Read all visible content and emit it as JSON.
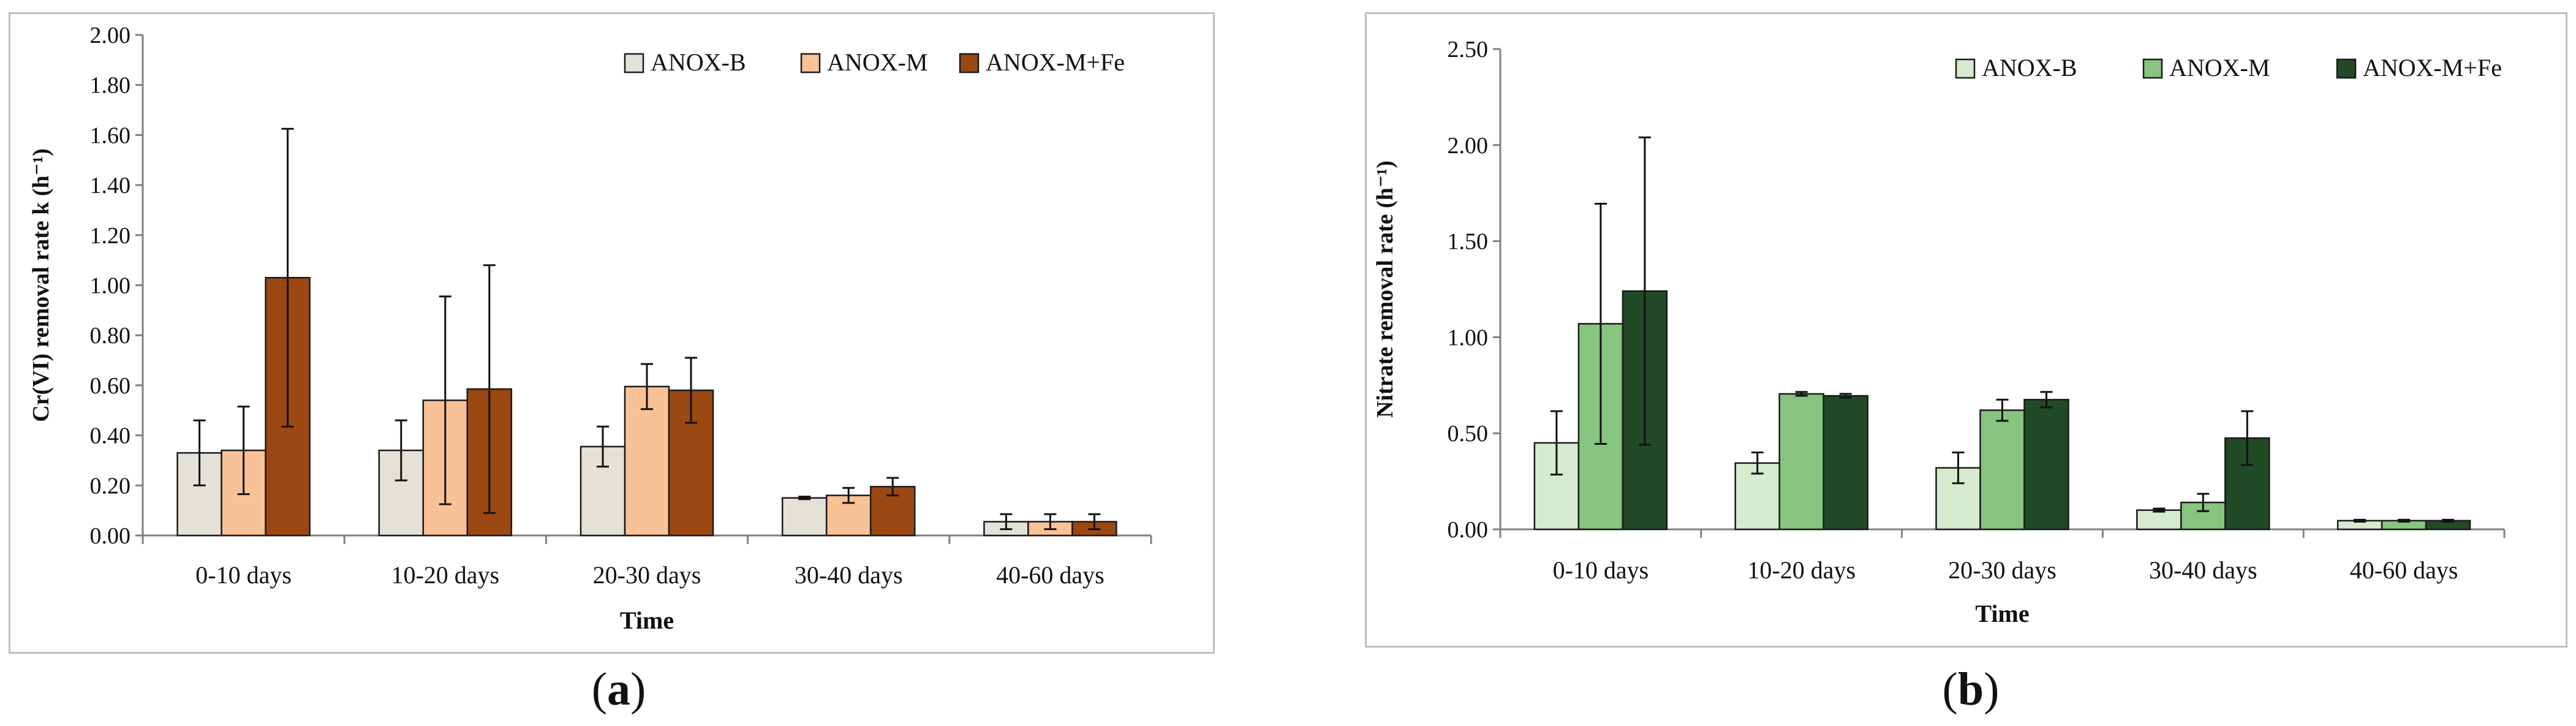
{
  "chart_data": [
    {
      "type": "bar",
      "panel_label": "a",
      "title": "",
      "xlabel": "Time",
      "ylabel": "Cr(VI) removal rate k (h⁻¹)",
      "ylim": [
        0,
        2.0
      ],
      "ytick_step": 0.2,
      "ytick_labels": [
        "0.00",
        "0.20",
        "0.40",
        "0.60",
        "0.80",
        "1.00",
        "1.20",
        "1.40",
        "1.60",
        "1.80",
        "2.00"
      ],
      "grid": false,
      "legend_position": "top-right",
      "categories": [
        "0-10 days",
        "10-20 days",
        "20-30 days",
        "30-40 days",
        "40-60 days"
      ],
      "series": [
        {
          "name": "ANOX-B",
          "color": "#e4e1d6",
          "values": [
            0.33,
            0.34,
            0.355,
            0.15,
            0.055
          ],
          "errors": [
            0.13,
            0.12,
            0.08,
            0.005,
            0.03
          ]
        },
        {
          "name": "ANOX-M",
          "color": "#f9c196",
          "values": [
            0.34,
            0.54,
            0.595,
            0.16,
            0.055
          ],
          "errors": [
            0.175,
            0.415,
            0.09,
            0.03,
            0.03
          ]
        },
        {
          "name": "ANOX-M+Fe",
          "color": "#9b4812",
          "values": [
            1.03,
            0.585,
            0.58,
            0.195,
            0.055
          ],
          "errors": [
            0.595,
            0.495,
            0.13,
            0.035,
            0.03
          ]
        }
      ]
    },
    {
      "type": "bar",
      "panel_label": "b",
      "title": "",
      "xlabel": "Time",
      "ylabel": "Nitrate removal rate (h⁻¹)",
      "ylim": [
        0,
        2.5
      ],
      "ytick_step": 0.5,
      "ytick_labels": [
        "0.00",
        "0.50",
        "1.00",
        "1.50",
        "2.00",
        "2.50"
      ],
      "grid": false,
      "legend_position": "top-right",
      "categories": [
        "0-10 days",
        "10-20 days",
        "20-30 days",
        "30-40 days",
        "40-60 days"
      ],
      "series": [
        {
          "name": "ANOX-B",
          "color": "#d4ebcd",
          "values": [
            0.45,
            0.345,
            0.32,
            0.1,
            0.045
          ],
          "errors": [
            0.165,
            0.055,
            0.08,
            0.008,
            0.005
          ]
        },
        {
          "name": "ANOX-M",
          "color": "#86c47f",
          "values": [
            1.07,
            0.705,
            0.62,
            0.14,
            0.045
          ],
          "errors": [
            0.625,
            0.01,
            0.055,
            0.045,
            0.005
          ]
        },
        {
          "name": "ANOX-M+Fe",
          "color": "#214a27",
          "values": [
            1.24,
            0.695,
            0.675,
            0.475,
            0.045
          ],
          "errors": [
            0.8,
            0.01,
            0.04,
            0.14,
            0.005
          ]
        }
      ]
    }
  ]
}
